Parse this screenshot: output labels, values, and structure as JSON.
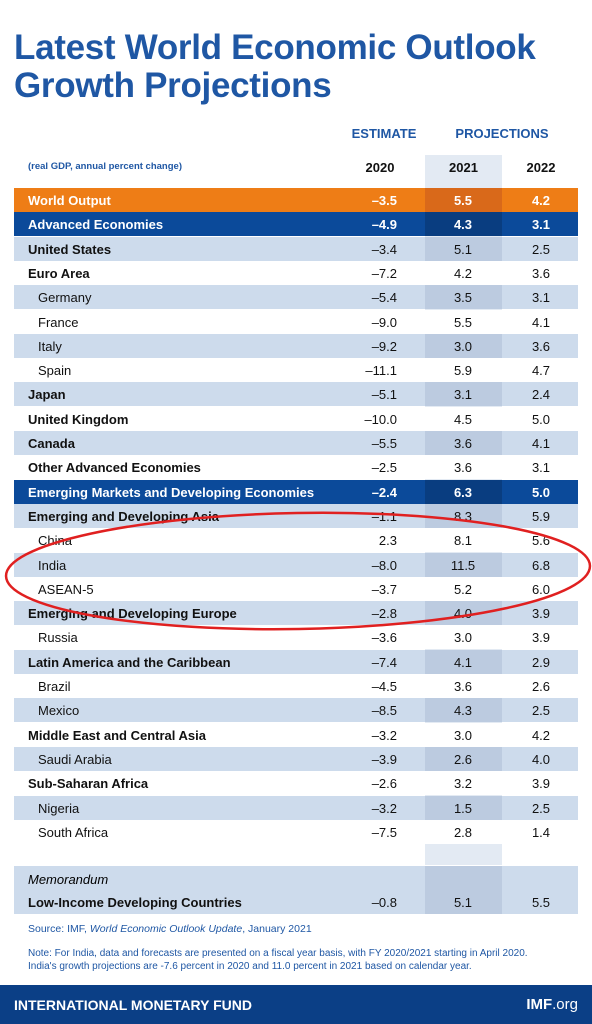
{
  "header": {
    "title_lines": [
      "Latest World Economic Outlook",
      "Growth Projections"
    ]
  },
  "table": {
    "estimate_label": "ESTIMATE",
    "projections_label": "PROJECTIONS",
    "units": "(real GDP, annual percent change)",
    "years": [
      "2020",
      "2021",
      "2022"
    ],
    "rows": [
      {
        "name": "World Output",
        "style": "world",
        "values": [
          "–3.5",
          "5.5",
          "4.2"
        ]
      },
      {
        "name": "Advanced Economies",
        "style": "band",
        "values": [
          "–4.9",
          "4.3",
          "3.1"
        ]
      },
      {
        "name": "United States",
        "style": "bold",
        "values": [
          "–3.4",
          "5.1",
          "2.5"
        ]
      },
      {
        "name": "Euro Area",
        "style": "bold",
        "values": [
          "–7.2",
          "4.2",
          "3.6"
        ]
      },
      {
        "name": "Germany",
        "style": "indent",
        "values": [
          "–5.4",
          "3.5",
          "3.1"
        ]
      },
      {
        "name": "France",
        "style": "indent",
        "values": [
          "–9.0",
          "5.5",
          "4.1"
        ]
      },
      {
        "name": "Italy",
        "style": "indent",
        "values": [
          "–9.2",
          "3.0",
          "3.6"
        ]
      },
      {
        "name": "Spain",
        "style": "indent",
        "values": [
          "–11.1",
          "5.9",
          "4.7"
        ]
      },
      {
        "name": "Japan",
        "style": "bold",
        "values": [
          "–5.1",
          "3.1",
          "2.4"
        ]
      },
      {
        "name": "United Kingdom",
        "style": "bold",
        "values": [
          "–10.0",
          "4.5",
          "5.0"
        ]
      },
      {
        "name": "Canada",
        "style": "bold",
        "values": [
          "–5.5",
          "3.6",
          "4.1"
        ]
      },
      {
        "name": "Other Advanced Economies",
        "style": "bold",
        "values": [
          "–2.5",
          "3.6",
          "3.1"
        ]
      },
      {
        "name": "Emerging Markets and Developing Economies",
        "style": "band",
        "values": [
          "–2.4",
          "6.3",
          "5.0"
        ]
      },
      {
        "name": "Emerging and Developing Asia",
        "style": "bold",
        "values": [
          "–1.1",
          "8.3",
          "5.9"
        ]
      },
      {
        "name": "China",
        "style": "indent",
        "values": [
          "2.3",
          "8.1",
          "5.6"
        ]
      },
      {
        "name": "India",
        "style": "indent",
        "values": [
          "–8.0",
          "11.5",
          "6.8"
        ]
      },
      {
        "name": "ASEAN-5",
        "style": "indent",
        "values": [
          "–3.7",
          "5.2",
          "6.0"
        ]
      },
      {
        "name": "Emerging and Developing Europe",
        "style": "bold",
        "values": [
          "–2.8",
          "4.0",
          "3.9"
        ]
      },
      {
        "name": "Russia",
        "style": "indent",
        "values": [
          "–3.6",
          "3.0",
          "3.9"
        ]
      },
      {
        "name": "Latin America and the Caribbean",
        "style": "bold",
        "values": [
          "–7.4",
          "4.1",
          "2.9"
        ]
      },
      {
        "name": "Brazil",
        "style": "indent",
        "values": [
          "–4.5",
          "3.6",
          "2.6"
        ]
      },
      {
        "name": "Mexico",
        "style": "indent",
        "values": [
          "–8.5",
          "4.3",
          "2.5"
        ]
      },
      {
        "name": "Middle East and Central Asia",
        "style": "bold",
        "values": [
          "–3.2",
          "3.0",
          "4.2"
        ]
      },
      {
        "name": "Saudi Arabia",
        "style": "indent",
        "values": [
          "–3.9",
          "2.6",
          "4.0"
        ]
      },
      {
        "name": "Sub-Saharan Africa",
        "style": "bold",
        "values": [
          "–2.6",
          "3.2",
          "3.9"
        ]
      },
      {
        "name": "Nigeria",
        "style": "indent",
        "values": [
          "–3.2",
          "1.5",
          "2.5"
        ]
      },
      {
        "name": "South Africa",
        "style": "indent",
        "values": [
          "–7.5",
          "2.8",
          "1.4"
        ]
      }
    ],
    "memorandum": {
      "label": "Memorandum",
      "row": {
        "name": "Low-Income Developing Countries",
        "values": [
          "–0.8",
          "5.1",
          "5.5"
        ]
      }
    }
  },
  "source": {
    "prefix": "Source: IMF, ",
    "publication": "World Economic Outlook Update",
    "suffix": ", January 2021"
  },
  "note": [
    "Note: For India, data and forecasts are presented on a fiscal year basis, with FY 2020/2021 starting in April 2020.",
    "India's growth projections are -7.6 percent in 2020 and 11.0 percent in 2021 based on calendar year."
  ],
  "footer": {
    "org": "INTERNATIONAL MONETARY FUND",
    "site_bold": "IMF",
    "site_rest": ".org"
  }
}
